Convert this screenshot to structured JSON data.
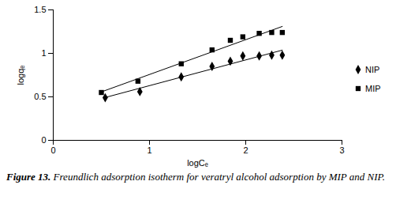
{
  "chart_data": {
    "type": "scatter",
    "caption_label": "Figure 13.",
    "caption": "Freundlich adsorption isotherm for veratryl alcohol adsorption by MIP and NIP.",
    "x_label": "logCₑ",
    "y_label": "logqₑ",
    "xlim": [
      0,
      3
    ],
    "xticks": [
      0,
      1,
      2,
      3
    ],
    "ylim": [
      0,
      1.5
    ],
    "yticks": [
      0,
      0.5,
      1,
      1.5
    ],
    "grid": false,
    "legend": "right",
    "series": [
      {
        "name": "NIP",
        "color": "#000000",
        "marker": "diamond",
        "line_style": "solid",
        "x": [
          0.54,
          0.9,
          1.33,
          1.65,
          1.84,
          1.97,
          2.14,
          2.27,
          2.38
        ],
        "values": [
          0.49,
          0.56,
          0.73,
          0.85,
          0.91,
          0.97,
          0.97,
          0.98,
          0.98
        ]
      },
      {
        "name": "MIP",
        "color": "#000000",
        "marker": "square",
        "line_style": "solid",
        "x": [
          0.5,
          0.88,
          1.33,
          1.65,
          1.84,
          1.97,
          2.14,
          2.27,
          2.38
        ],
        "values": [
          0.55,
          0.68,
          0.88,
          1.04,
          1.15,
          1.19,
          1.23,
          1.24,
          1.24
        ]
      }
    ]
  }
}
